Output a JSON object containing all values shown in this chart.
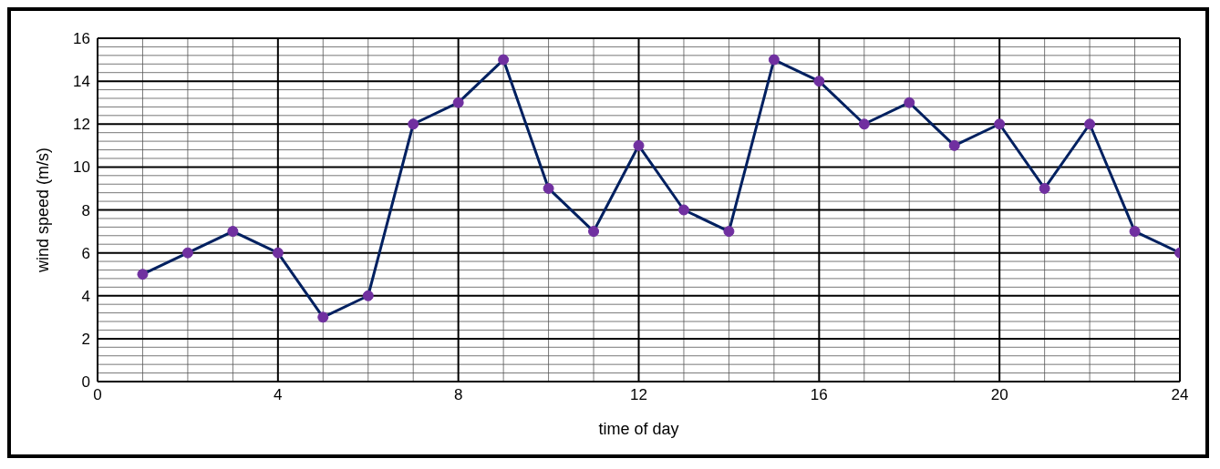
{
  "chart_data": {
    "type": "line",
    "xlabel": "time of day",
    "ylabel": "wind speed (m/s)",
    "x": [
      1,
      2,
      3,
      4,
      5,
      6,
      7,
      8,
      9,
      10,
      11,
      12,
      13,
      14,
      15,
      16,
      17,
      18,
      19,
      20,
      21,
      22,
      23,
      24
    ],
    "series": [
      {
        "color": "#002060",
        "values": [
          5,
          6,
          7,
          6,
          3,
          4,
          12,
          13,
          15,
          9,
          7,
          11,
          8,
          7,
          15,
          14,
          12,
          13,
          11,
          12,
          9,
          12,
          7,
          6
        ]
      }
    ],
    "xlim": [
      0,
      24
    ],
    "xticks": [
      0,
      4,
      8,
      12,
      16,
      20,
      24
    ],
    "ylim": [
      0,
      16
    ],
    "yticks": [
      0,
      2,
      4,
      6,
      8,
      10,
      12,
      14,
      16
    ],
    "grid": true,
    "marker": "circle",
    "line_style": "solid",
    "legend": false
  }
}
